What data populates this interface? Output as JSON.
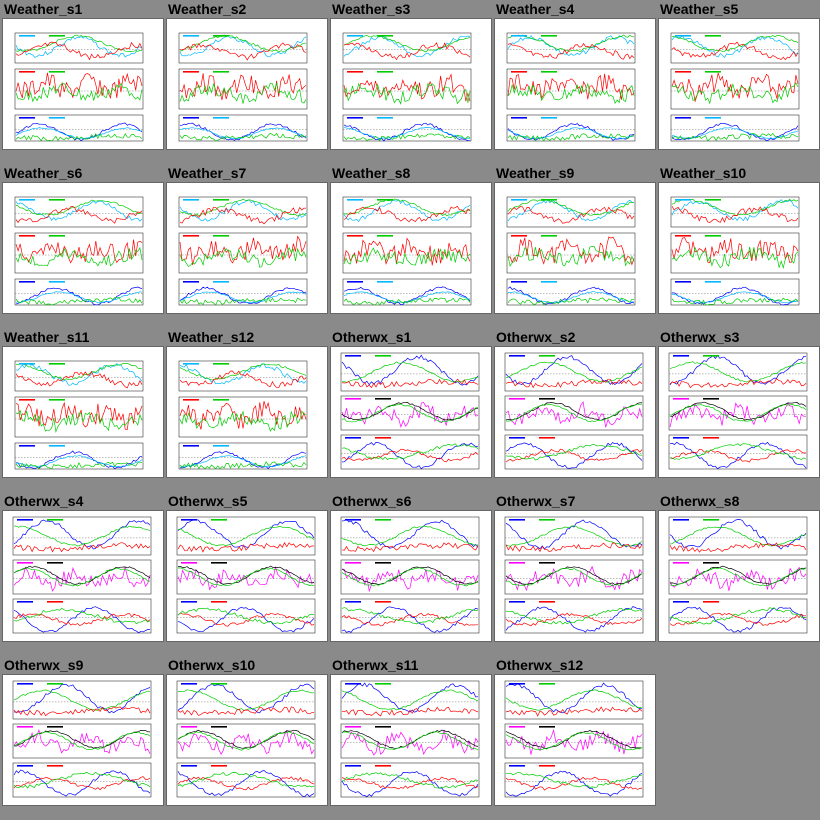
{
  "thumbnails": [
    {
      "title": "Weather_s1",
      "kind": "weather"
    },
    {
      "title": "Weather_s2",
      "kind": "weather"
    },
    {
      "title": "Weather_s3",
      "kind": "weather"
    },
    {
      "title": "Weather_s4",
      "kind": "weather"
    },
    {
      "title": "Weather_s5",
      "kind": "weather"
    },
    {
      "title": "Weather_s6",
      "kind": "weather"
    },
    {
      "title": "Weather_s7",
      "kind": "weather"
    },
    {
      "title": "Weather_s8",
      "kind": "weather"
    },
    {
      "title": "Weather_s9",
      "kind": "weather"
    },
    {
      "title": "Weather_s10",
      "kind": "weather"
    },
    {
      "title": "Weather_s11",
      "kind": "weather"
    },
    {
      "title": "Weather_s12",
      "kind": "weather"
    },
    {
      "title": "Otherwx_s1",
      "kind": "otherwx"
    },
    {
      "title": "Otherwx_s2",
      "kind": "otherwx"
    },
    {
      "title": "Otherwx_s3",
      "kind": "otherwx"
    },
    {
      "title": "Otherwx_s4",
      "kind": "otherwx"
    },
    {
      "title": "Otherwx_s5",
      "kind": "otherwx"
    },
    {
      "title": "Otherwx_s6",
      "kind": "otherwx"
    },
    {
      "title": "Otherwx_s7",
      "kind": "otherwx"
    },
    {
      "title": "Otherwx_s8",
      "kind": "otherwx"
    },
    {
      "title": "Otherwx_s9",
      "kind": "otherwx"
    },
    {
      "title": "Otherwx_s10",
      "kind": "otherwx"
    },
    {
      "title": "Otherwx_s11",
      "kind": "otherwx"
    },
    {
      "title": "Otherwx_s12",
      "kind": "otherwx"
    }
  ],
  "colors": {
    "page_background": "#8a8a8a",
    "thumbnail_background": "#ffffff",
    "series": [
      "#00b8ff",
      "#00cc00",
      "#ff0000",
      "#0000ff",
      "#ff00ff",
      "#000000"
    ]
  }
}
